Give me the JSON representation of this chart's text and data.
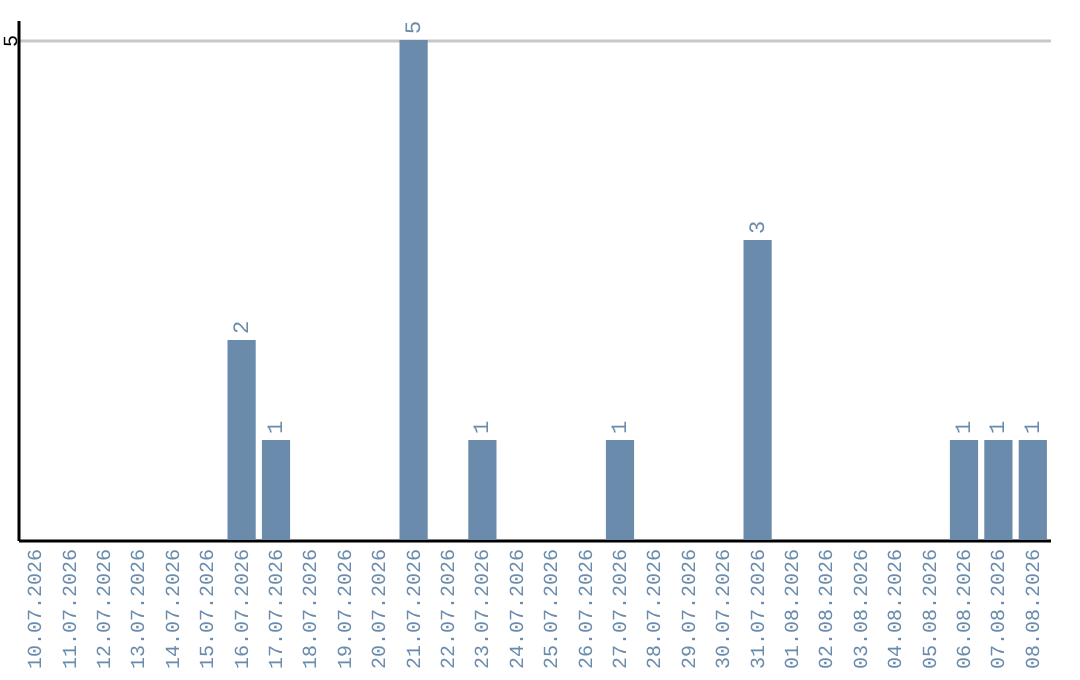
{
  "chart_data": {
    "type": "bar",
    "categories": [
      "10.07.2026",
      "11.07.2026",
      "12.07.2026",
      "13.07.2026",
      "14.07.2026",
      "15.07.2026",
      "16.07.2026",
      "17.07.2026",
      "18.07.2026",
      "19.07.2026",
      "20.07.2026",
      "21.07.2026",
      "22.07.2026",
      "23.07.2026",
      "24.07.2026",
      "25.07.2026",
      "26.07.2026",
      "27.07.2026",
      "28.07.2026",
      "29.07.2026",
      "30.07.2026",
      "31.07.2026",
      "01.08.2026",
      "02.08.2026",
      "03.08.2026",
      "04.08.2026",
      "05.08.2026",
      "06.08.2026",
      "07.08.2026",
      "08.08.2026"
    ],
    "values": [
      0,
      0,
      0,
      0,
      0,
      0,
      2,
      1,
      0,
      0,
      0,
      5,
      0,
      1,
      0,
      0,
      0,
      1,
      0,
      0,
      0,
      3,
      0,
      0,
      0,
      0,
      0,
      1,
      1,
      1
    ],
    "value_labels": [
      null,
      null,
      null,
      null,
      null,
      null,
      "2",
      "1",
      null,
      null,
      null,
      "5",
      null,
      "1",
      null,
      null,
      null,
      "1",
      null,
      null,
      null,
      "3",
      null,
      null,
      null,
      null,
      null,
      "1",
      "1",
      "1"
    ],
    "color": "#6a8bab",
    "ylim": [
      0,
      5.2
    ],
    "yticks": [
      5
    ],
    "grid": "y"
  }
}
